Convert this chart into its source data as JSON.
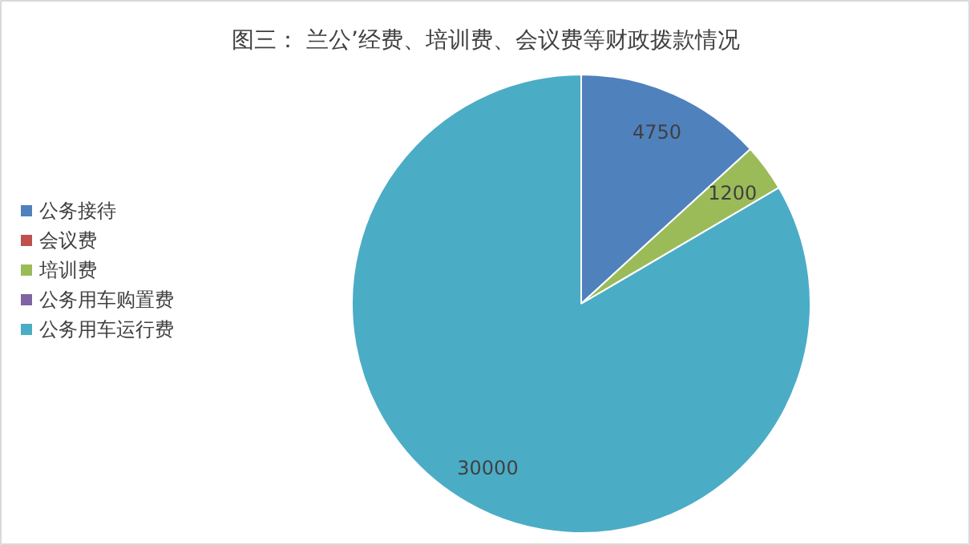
{
  "chart_data": {
    "type": "pie",
    "title": "图三： 兰公’经费、培训费、会议费等财政拨款情况",
    "categories": [
      "公务接待",
      "会议费",
      "培训费",
      "公务用车购置费",
      "公务用车运行费"
    ],
    "values": [
      4750,
      0,
      1200,
      0,
      30000
    ],
    "colors": [
      "#4f81bd",
      "#c0504d",
      "#9bbb59",
      "#8064a2",
      "#4bacc6"
    ],
    "value_labels": [
      "4750",
      null,
      "1200",
      null,
      "30000"
    ],
    "legend": "left"
  }
}
